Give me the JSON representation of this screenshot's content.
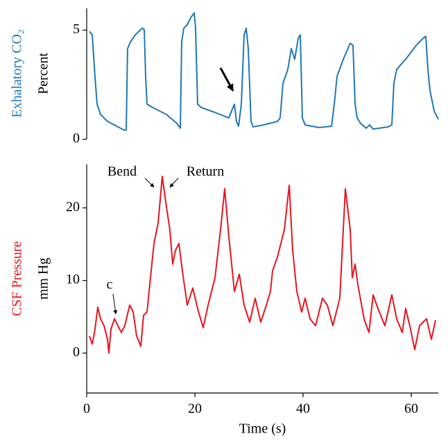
{
  "chart_data": [
    {
      "type": "line",
      "ylabel": "Exhalatory CO₂",
      "yunit": "Percent",
      "color": "#1f77b4",
      "xlim": [
        0,
        65
      ],
      "ylim": [
        0,
        6
      ],
      "yticks": [
        0,
        5
      ],
      "x": [
        0.51,
        1.03,
        1.54,
        1.92,
        2.56,
        3.85,
        5.77,
        7.05,
        7.31,
        7.56,
        8.08,
        8.97,
        10.26,
        10.64,
        10.9,
        11.15,
        12.18,
        14.74,
        16.67,
        17.31,
        17.56,
        17.95,
        18.59,
        19.23,
        19.87,
        20.13,
        20.51,
        21.15,
        23.72,
        26.28,
        26.79,
        27.31,
        27.69,
        28.08,
        28.59,
        29.1,
        29.49,
        29.87,
        30.38,
        30.77,
        32.69,
        35.26,
        35.77,
        36.28,
        37.18,
        37.82,
        38.46,
        39.1,
        39.49,
        39.87,
        40.38,
        42.95,
        45.26,
        45.77,
        46.28,
        47.44,
        48.72,
        49.23,
        49.62,
        50,
        50.64,
        51.67,
        52.31,
        52.95,
        55.77,
        56.41,
        56.79,
        57.31,
        58.97,
        60.9,
        62.18,
        62.69,
        63.08,
        63.46,
        64.23,
        65
      ],
      "values": [
        4.94,
        4.78,
        2.85,
        1.61,
        1.14,
        0.82,
        0.57,
        0.41,
        0.44,
        4.15,
        4.46,
        4.78,
        5.09,
        5.03,
        2.85,
        1.61,
        1.46,
        1.14,
        0.73,
        0.51,
        4.46,
        5.09,
        5.25,
        5.57,
        5.79,
        5.09,
        1.61,
        1.46,
        1.23,
        0.98,
        1.3,
        1.61,
        0.82,
        0.6,
        1.61,
        4.78,
        5.09,
        4.15,
        0.82,
        0.57,
        0.66,
        0.82,
        0.98,
        2.56,
        3.2,
        4.15,
        3.67,
        4.62,
        4.78,
        0.98,
        0.66,
        0.54,
        0.6,
        1.61,
        2.88,
        3.67,
        4.4,
        4.3,
        1.61,
        0.98,
        0.73,
        0.51,
        0.66,
        0.47,
        0.57,
        0.66,
        2.56,
        3.2,
        3.67,
        4.3,
        4.62,
        4.72,
        3.2,
        2.25,
        1.3,
        0.92
      ]
    },
    {
      "type": "line",
      "ylabel": "CSF Pressure",
      "yunit": "mm Hg",
      "xlabel": "Time (s)",
      "color": "#e8141c",
      "xlim": [
        0,
        65
      ],
      "ylim": [
        -5.5,
        26
      ],
      "yticks": [
        0,
        10,
        20
      ],
      "xticks": [
        0,
        20,
        40,
        60
      ],
      "annotations": [
        "Bend",
        "Return",
        "c"
      ],
      "x": [
        0.51,
        1.03,
        1.54,
        2.05,
        2.56,
        3.21,
        3.85,
        4.1,
        4.49,
        5.13,
        5.77,
        6.41,
        7.05,
        7.95,
        8.59,
        9.23,
        10,
        10.51,
        11.15,
        11.79,
        12.44,
        13.21,
        13.97,
        14.62,
        15.38,
        15.9,
        16.41,
        17.05,
        17.69,
        18.59,
        19.62,
        20.51,
        21.54,
        22.44,
        23.72,
        24.74,
        25.51,
        26.28,
        27.31,
        28.21,
        29.1,
        30.13,
        31.15,
        32.18,
        33.21,
        33.97,
        34.36,
        35.26,
        36.54,
        37.44,
        38.08,
        38.85,
        39.74,
        40.38,
        41.28,
        42.31,
        43.59,
        44.49,
        45.51,
        46.79,
        47.82,
        48.72,
        49.1,
        49.62,
        50.13,
        51.28,
        52.18,
        52.95,
        53.85,
        55.13,
        56.41,
        57.31,
        58.33,
        58.97,
        59.87,
        60.64,
        61.54,
        62.82,
        63.72,
        64.49
      ],
      "values": [
        2.36,
        1.23,
        3.3,
        6.32,
        4.72,
        3.77,
        1.89,
        0,
        3.3,
        4.72,
        3.77,
        2.83,
        3.77,
        6.6,
        5.66,
        2.36,
        0.94,
        5.19,
        5.66,
        10.38,
        15.09,
        17.92,
        24.34,
        20.75,
        16.98,
        12.26,
        14.15,
        15.09,
        11.32,
        6.6,
        8.96,
        6.13,
        3.49,
        6.6,
        10.38,
        16.98,
        22.64,
        16.04,
        8.49,
        10.85,
        6.6,
        4.25,
        7.55,
        4.25,
        6.6,
        8.49,
        11.32,
        13.21,
        16.98,
        23.11,
        14.15,
        8.49,
        5.66,
        7.55,
        4.72,
        3.77,
        7.55,
        6.6,
        3.77,
        7.55,
        22.64,
        16.98,
        10.38,
        12.26,
        9.43,
        4.72,
        2.83,
        8.02,
        6.13,
        3.77,
        8.02,
        4.72,
        2.83,
        6.13,
        3.3,
        0.47,
        3.77,
        4.72,
        1.89,
        4.53
      ]
    }
  ]
}
